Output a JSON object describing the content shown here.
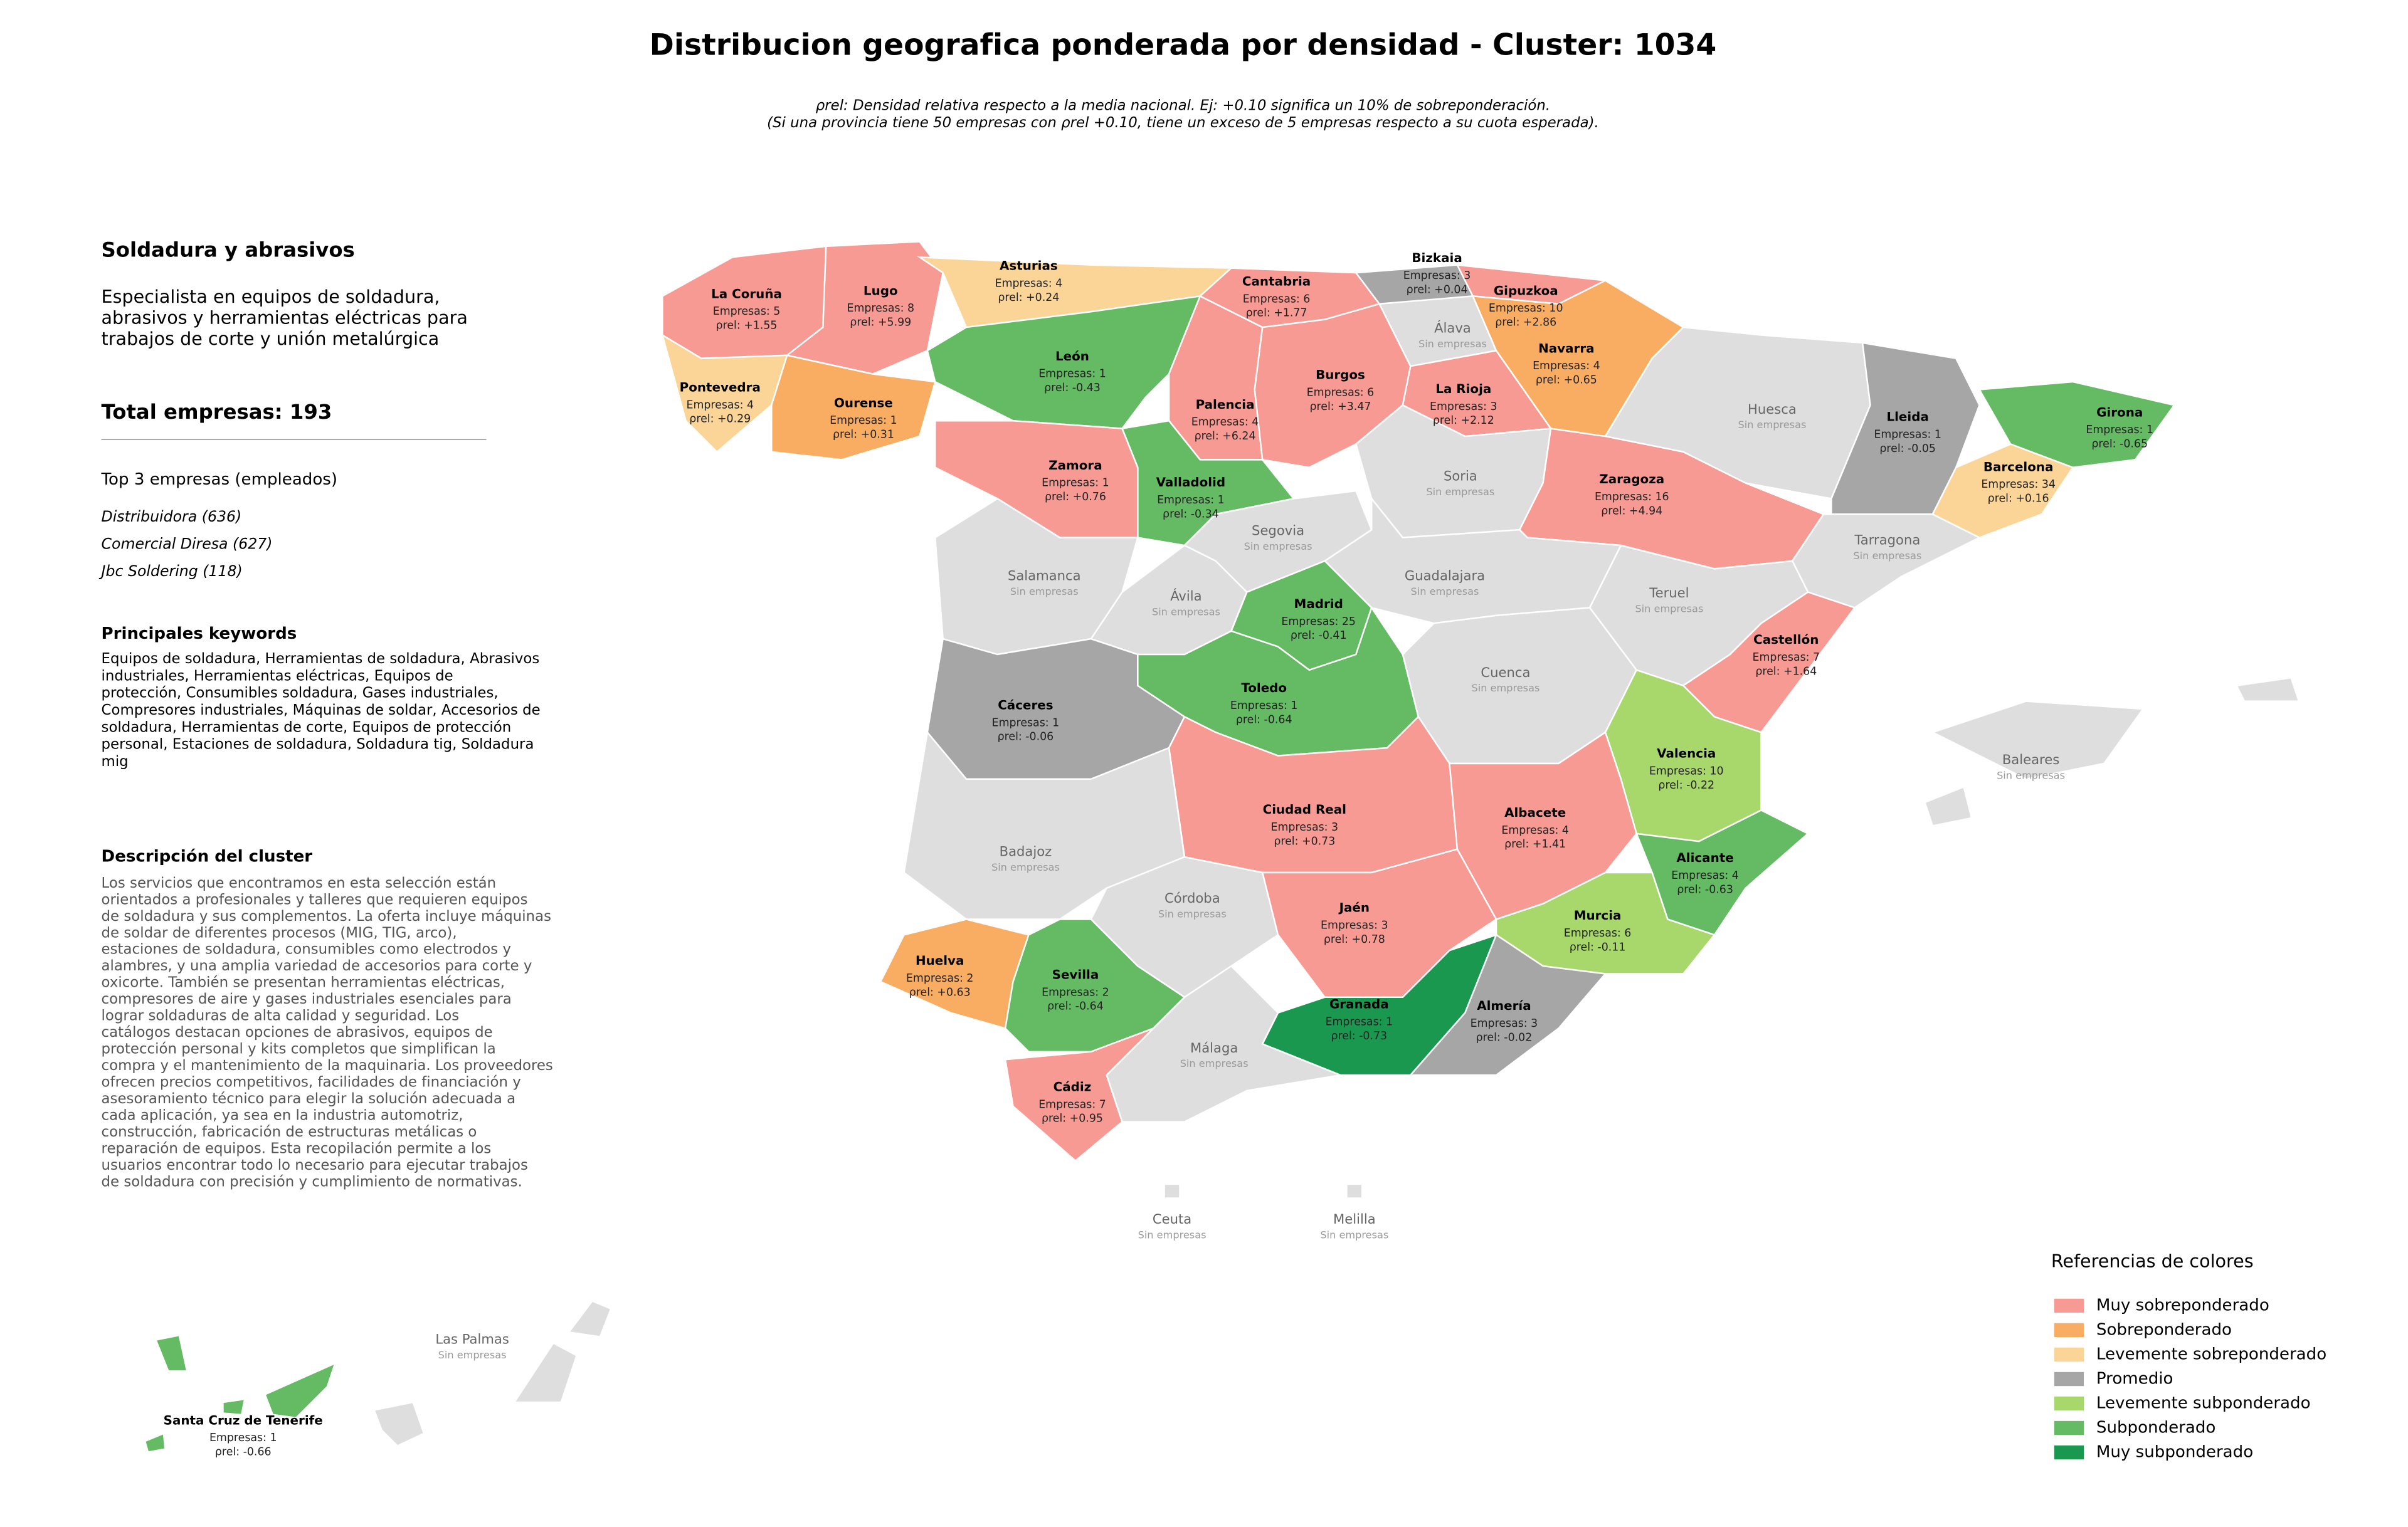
{
  "header": {
    "title": "Distribucion geografica ponderada por densidad - Cluster: 1034",
    "subtitle": [
      "ρrel: Densidad relativa respecto a la media nacional. Ej: +0.10 significa un 10% de sobreponderación.",
      "(Si una provincia tiene 50 empresas con ρrel +0.10, tiene un exceso de 5 empresas respecto a su cuota esperada)."
    ]
  },
  "sidebar": {
    "heading": "Soldadura y abrasivos",
    "summary": [
      "Especialista en equipos de soldadura,",
      "abrasivos y herramientas eléctricas para",
      "trabajos de corte y unión metalúrgica"
    ],
    "total": "Total empresas: 193",
    "top_title": "Top 3 empresas (empleados)",
    "top": [
      "Distribuidora (636)",
      "Comercial Diresa (627)",
      "Jbc Soldering (118)"
    ],
    "keywords_title": "Principales keywords",
    "keywords": [
      "Equipos de soldadura, Herramientas de soldadura, Abrasivos",
      "industriales, Herramientas eléctricas, Equipos de",
      "protección, Consumibles soldadura, Gases industriales,",
      "Compresores industriales, Máquinas de soldar, Accesorios de",
      "soldadura, Herramientas de corte, Equipos de protección",
      "personal, Estaciones de soldadura, Soldadura tig, Soldadura",
      "mig"
    ],
    "description_title": "Descripción del cluster",
    "description": [
      "Los servicios que encontramos en esta selección están",
      "orientados a profesionales y talleres que requieren equipos",
      "de soldadura y sus complementos. La oferta incluye máquinas",
      "de soldar de diferentes procesos (MIG, TIG, arco),",
      "estaciones de soldadura, consumibles como electrodos y",
      "alambres, y una amplia variedad de accesorios para corte y",
      "oxicorte. También se presentan herramientas eléctricas,",
      "compresores de aire y gases industriales esenciales para",
      "lograr soldaduras de alta calidad y seguridad. Los",
      "catálogos destacan opciones de abrasivos, equipos de",
      "protección personal y kits completos que simplifican la",
      "compra y el mantenimiento de la maquinaria. Los proveedores",
      "ofrecen precios competitivos, facilidades de financiación y",
      "asesoramiento técnico para elegir la solución adecuada a",
      "cada aplicación, ya sea en la industria automotriz,",
      "construcción, fabricación de estructuras metálicas o",
      "reparación de equipos. Esta recopilación permite a los",
      "usuarios encontrar todo lo necesario para ejecutar trabajos",
      "de soldadura con precisión y cumplimiento de normativas."
    ]
  },
  "legend": {
    "title": "Referencias de colores",
    "items": [
      {
        "label": "Muy sobreponderado",
        "color": "#f79a93"
      },
      {
        "label": "Sobreponderado",
        "color": "#f9ad63"
      },
      {
        "label": "Levemente sobreponderado",
        "color": "#fbd598"
      },
      {
        "label": "Promedio",
        "color": "#a6a6a6"
      },
      {
        "label": "Levemente subponderado",
        "color": "#a8d86c"
      },
      {
        "label": "Subponderado",
        "color": "#64bb63"
      },
      {
        "label": "Muy subponderado",
        "color": "#1a9850"
      }
    ]
  },
  "provinces": [
    {
      "name": "La Coruña",
      "companies": "Empresas: 5",
      "rho": "ρrel: +1.55",
      "color": "#f79a93"
    },
    {
      "name": "Lugo",
      "companies": "Empresas: 8",
      "rho": "ρrel: +5.99",
      "color": "#f79a93"
    },
    {
      "name": "Asturias",
      "companies": "Empresas: 4",
      "rho": "ρrel: +0.24",
      "color": "#fbd598"
    },
    {
      "name": "Cantabria",
      "companies": "Empresas: 6",
      "rho": "ρrel: +1.77",
      "color": "#f79a93"
    },
    {
      "name": "Bizkaia",
      "companies": "Empresas: 3",
      "rho": "ρrel: +0.04",
      "color": "#a6a6a6"
    },
    {
      "name": "Gipuzkoa",
      "companies": "Empresas: 10",
      "rho": "ρrel: +2.86",
      "color": "#f79a93"
    },
    {
      "name": "Álava",
      "companies": "Sin empresas",
      "color": "#dedede"
    },
    {
      "name": "Navarra",
      "companies": "Empresas: 4",
      "rho": "ρrel: +0.65",
      "color": "#f9ad63"
    },
    {
      "name": "Pontevedra",
      "companies": "Empresas: 4",
      "rho": "ρrel: +0.29",
      "color": "#fbd598"
    },
    {
      "name": "Ourense",
      "companies": "Empresas: 1",
      "rho": "ρrel: +0.31",
      "color": "#f9ad63"
    },
    {
      "name": "León",
      "companies": "Empresas: 1",
      "rho": "ρrel: -0.43",
      "color": "#64bb63"
    },
    {
      "name": "Palencia",
      "companies": "Empresas: 4",
      "rho": "ρrel: +6.24",
      "color": "#f79a93"
    },
    {
      "name": "Burgos",
      "companies": "Empresas: 6",
      "rho": "ρrel: +3.47",
      "color": "#f79a93"
    },
    {
      "name": "La Rioja",
      "companies": "Empresas: 3",
      "rho": "ρrel: +2.12",
      "color": "#f79a93"
    },
    {
      "name": "Huesca",
      "companies": "Sin empresas",
      "color": "#dedede"
    },
    {
      "name": "Lleida",
      "companies": "Empresas: 1",
      "rho": "ρrel: -0.05",
      "color": "#a6a6a6"
    },
    {
      "name": "Girona",
      "companies": "Empresas: 1",
      "rho": "ρrel: -0.65",
      "color": "#64bb63"
    },
    {
      "name": "Zamora",
      "companies": "Empresas: 1",
      "rho": "ρrel: +0.76",
      "color": "#f79a93"
    },
    {
      "name": "Valladolid",
      "companies": "Empresas: 1",
      "rho": "ρrel: -0.34",
      "color": "#64bb63"
    },
    {
      "name": "Soria",
      "companies": "Sin empresas",
      "color": "#dedede"
    },
    {
      "name": "Zaragoza",
      "companies": "Empresas: 16",
      "rho": "ρrel: +4.94",
      "color": "#f79a93"
    },
    {
      "name": "Barcelona",
      "companies": "Empresas: 34",
      "rho": "ρrel: +0.16",
      "color": "#fbd598"
    },
    {
      "name": "Salamanca",
      "companies": "Sin empresas",
      "color": "#dedede"
    },
    {
      "name": "Segovia",
      "companies": "Sin empresas",
      "color": "#dedede"
    },
    {
      "name": "Guadalajara",
      "companies": "Sin empresas",
      "color": "#dedede"
    },
    {
      "name": "Tarragona",
      "companies": "Sin empresas",
      "color": "#dedede"
    },
    {
      "name": "Ávila",
      "companies": "Sin empresas",
      "color": "#dedede"
    },
    {
      "name": "Madrid",
      "companies": "Empresas: 25",
      "rho": "ρrel: -0.41",
      "color": "#64bb63"
    },
    {
      "name": "Teruel",
      "companies": "Sin empresas",
      "color": "#dedede"
    },
    {
      "name": "Castellón",
      "companies": "Empresas: 7",
      "rho": "ρrel: +1.64",
      "color": "#f79a93"
    },
    {
      "name": "Cuenca",
      "companies": "Sin empresas",
      "color": "#dedede"
    },
    {
      "name": "Cáceres",
      "companies": "Empresas: 1",
      "rho": "ρrel: -0.06",
      "color": "#a6a6a6"
    },
    {
      "name": "Toledo",
      "companies": "Empresas: 1",
      "rho": "ρrel: -0.64",
      "color": "#64bb63"
    },
    {
      "name": "Valencia",
      "companies": "Empresas: 10",
      "rho": "ρrel: -0.22",
      "color": "#a8d86c"
    },
    {
      "name": "Ciudad Real",
      "companies": "Empresas: 3",
      "rho": "ρrel: +0.73",
      "color": "#f79a93"
    },
    {
      "name": "Albacete",
      "companies": "Empresas: 4",
      "rho": "ρrel: +1.41",
      "color": "#f79a93"
    },
    {
      "name": "Badajoz",
      "companies": "Sin empresas",
      "color": "#dedede"
    },
    {
      "name": "Alicante",
      "companies": "Empresas: 4",
      "rho": "ρrel: -0.63",
      "color": "#64bb63"
    },
    {
      "name": "Córdoba",
      "companies": "Sin empresas",
      "color": "#dedede"
    },
    {
      "name": "Jaén",
      "companies": "Empresas: 3",
      "rho": "ρrel: +0.78",
      "color": "#f79a93"
    },
    {
      "name": "Murcia",
      "companies": "Empresas: 6",
      "rho": "ρrel: -0.11",
      "color": "#a8d86c"
    },
    {
      "name": "Huelva",
      "companies": "Empresas: 2",
      "rho": "ρrel: +0.63",
      "color": "#f9ad63"
    },
    {
      "name": "Sevilla",
      "companies": "Empresas: 2",
      "rho": "ρrel: -0.64",
      "color": "#64bb63"
    },
    {
      "name": "Granada",
      "companies": "Empresas: 1",
      "rho": "ρrel: -0.73",
      "color": "#1a9850"
    },
    {
      "name": "Almería",
      "companies": "Empresas: 3",
      "rho": "ρrel: -0.02",
      "color": "#a6a6a6"
    },
    {
      "name": "Málaga",
      "companies": "Sin empresas",
      "color": "#dedede"
    },
    {
      "name": "Cádiz",
      "companies": "Empresas: 7",
      "rho": "ρrel: +0.95",
      "color": "#f79a93"
    },
    {
      "name": "Baleares",
      "companies": "Sin empresas",
      "color": "#dedede"
    },
    {
      "name": "Ceuta",
      "companies": "Sin empresas",
      "color": "#dedede"
    },
    {
      "name": "Melilla",
      "companies": "Sin empresas",
      "color": "#dedede"
    },
    {
      "name": "Las Palmas",
      "companies": "Sin empresas",
      "color": "#dedede"
    },
    {
      "name": "Santa Cruz de Tenerife",
      "companies": "Empresas: 1",
      "rho": "ρrel: -0.66",
      "color": "#64bb63"
    }
  ]
}
